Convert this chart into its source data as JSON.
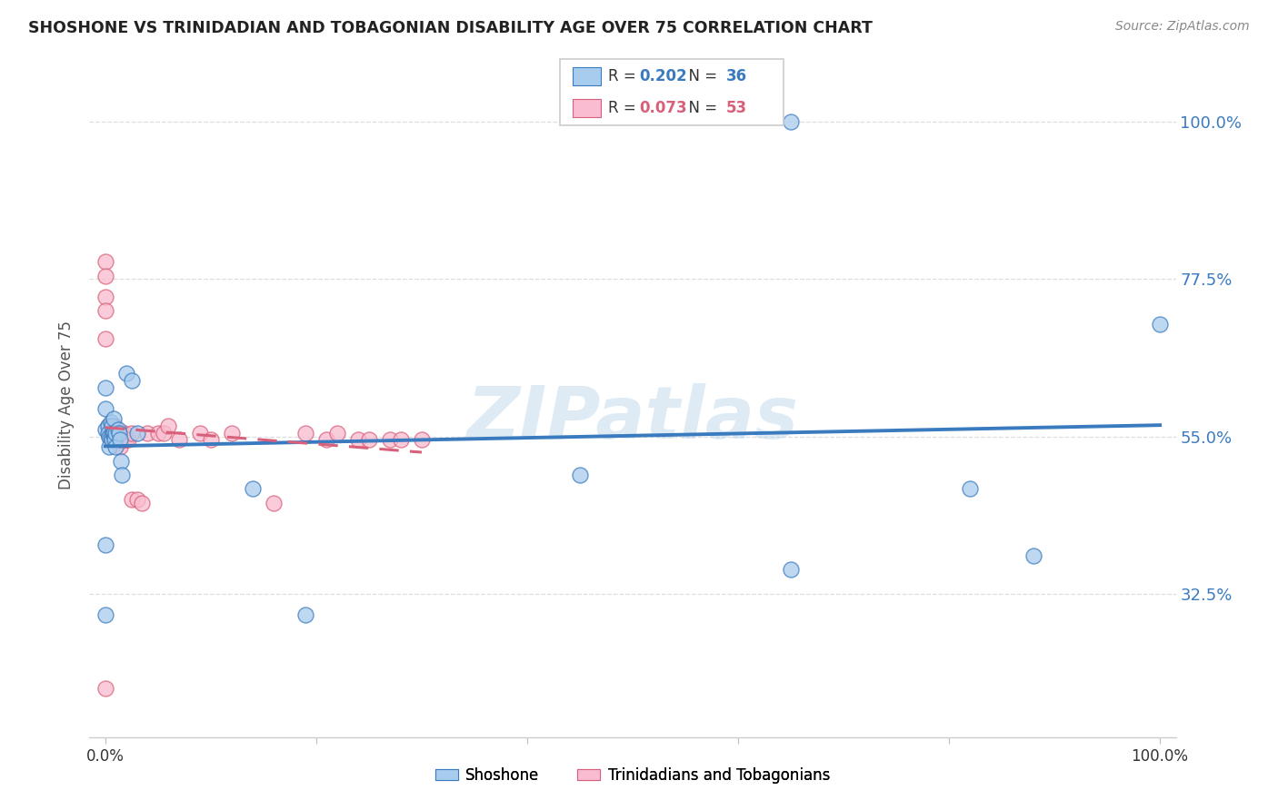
{
  "title": "SHOSHONE VS TRINIDADIAN AND TOBAGONIAN DISABILITY AGE OVER 75 CORRELATION CHART",
  "source": "Source: ZipAtlas.com",
  "ylabel": "Disability Age Over 75",
  "ytick_labels": [
    "32.5%",
    "55.0%",
    "77.5%",
    "100.0%"
  ],
  "ytick_vals": [
    0.325,
    0.55,
    0.775,
    1.0
  ],
  "watermark": "ZIPatlas",
  "blue_color": "#a8ccee",
  "pink_color": "#f9bcd0",
  "line_blue": "#3a7bbf",
  "line_pink": "#d9607a",
  "blue_r": "0.202",
  "blue_n": "36",
  "pink_r": "0.073",
  "pink_n": "53",
  "shoshone_x": [
    0.0,
    0.0,
    0.0,
    0.003,
    0.003,
    0.004,
    0.004,
    0.005,
    0.005,
    0.006,
    0.006,
    0.007,
    0.008,
    0.008,
    0.009,
    0.009,
    0.01,
    0.01,
    0.012,
    0.013,
    0.014,
    0.015,
    0.016,
    0.02,
    0.025,
    0.03,
    0.14,
    0.19,
    0.45,
    0.65,
    0.65,
    0.82,
    0.88,
    1.0,
    0.0,
    0.0
  ],
  "shoshone_y": [
    0.62,
    0.59,
    0.56,
    0.565,
    0.555,
    0.55,
    0.535,
    0.57,
    0.55,
    0.565,
    0.545,
    0.555,
    0.575,
    0.555,
    0.55,
    0.545,
    0.555,
    0.535,
    0.56,
    0.555,
    0.545,
    0.515,
    0.495,
    0.64,
    0.63,
    0.555,
    0.475,
    0.295,
    0.495,
    0.36,
    1.0,
    0.475,
    0.38,
    0.71,
    0.395,
    0.295
  ],
  "trini_x": [
    0.0,
    0.0,
    0.0,
    0.0,
    0.0,
    0.003,
    0.003,
    0.004,
    0.005,
    0.005,
    0.006,
    0.007,
    0.008,
    0.009,
    0.009,
    0.01,
    0.01,
    0.011,
    0.012,
    0.012,
    0.013,
    0.014,
    0.014,
    0.015,
    0.015,
    0.016,
    0.017,
    0.018,
    0.019,
    0.02,
    0.022,
    0.025,
    0.025,
    0.03,
    0.035,
    0.04,
    0.05,
    0.055,
    0.06,
    0.07,
    0.09,
    0.1,
    0.12,
    0.16,
    0.19,
    0.21,
    0.22,
    0.24,
    0.25,
    0.27,
    0.28,
    0.3,
    0.0
  ],
  "trini_y": [
    0.8,
    0.78,
    0.75,
    0.73,
    0.69,
    0.565,
    0.555,
    0.55,
    0.565,
    0.555,
    0.555,
    0.55,
    0.545,
    0.565,
    0.555,
    0.555,
    0.545,
    0.555,
    0.55,
    0.54,
    0.555,
    0.545,
    0.535,
    0.555,
    0.545,
    0.555,
    0.545,
    0.555,
    0.545,
    0.545,
    0.545,
    0.555,
    0.46,
    0.46,
    0.455,
    0.555,
    0.555,
    0.555,
    0.565,
    0.545,
    0.555,
    0.545,
    0.555,
    0.455,
    0.555,
    0.545,
    0.555,
    0.545,
    0.545,
    0.545,
    0.545,
    0.545,
    0.19
  ]
}
